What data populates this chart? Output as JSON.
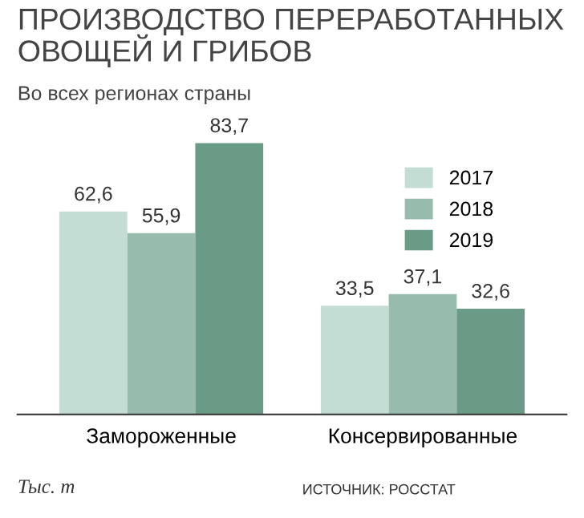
{
  "chart_data": {
    "type": "bar",
    "title": "ПРОИЗВОДСТВО ПЕРЕРАБОТАННЫХ\nОВОЩЕЙ И ГРИБОВ",
    "subtitle": "Во всех регионах страны",
    "categories": [
      "Замороженные",
      "Консервированные"
    ],
    "series": [
      {
        "name": "2017",
        "color": "#c4ddd4",
        "values": [
          62.6,
          33.5
        ],
        "value_labels": [
          "62,6",
          "33,5"
        ]
      },
      {
        "name": "2018",
        "color": "#97bcae",
        "values": [
          55.9,
          37.1
        ],
        "value_labels": [
          "55,9",
          "37,1"
        ]
      },
      {
        "name": "2019",
        "color": "#6a9b87",
        "values": [
          83.7,
          32.6
        ],
        "value_labels": [
          "83,7",
          "32,6"
        ]
      }
    ],
    "legend": "right",
    "annotations": [
      "Тыс. т",
      "ИСТОЧНИК: РОССТАТ"
    ]
  }
}
